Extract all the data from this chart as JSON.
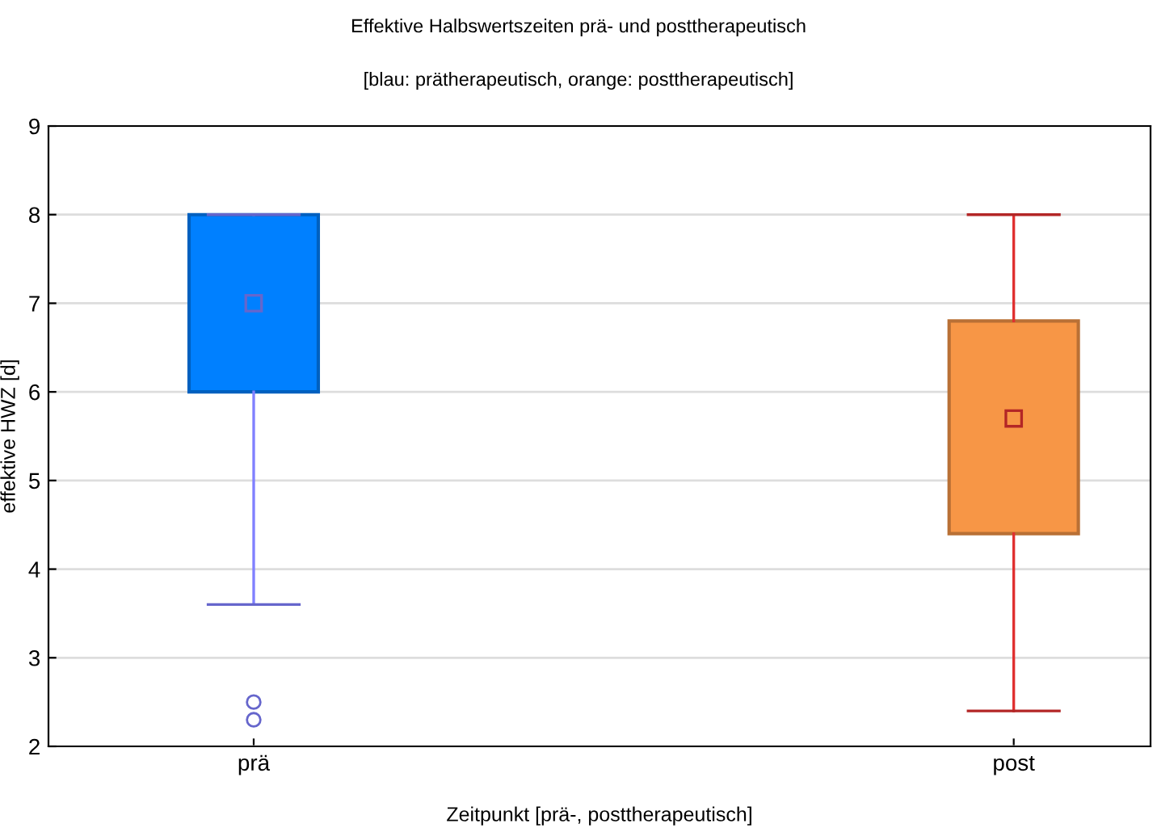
{
  "chart_data": {
    "type": "box",
    "title": "Effektive Halbswertszeiten prä- und posttherapeutisch",
    "subtitle": "[blau: prätherapeutisch, orange: posttherapeutisch]",
    "xlabel": "Zeitpunkt [prä-, posttherapeutisch]",
    "ylabel": "effektive HWZ [d]",
    "categories": [
      "prä",
      "post"
    ],
    "colors": [
      "#0080ff",
      "#f79646"
    ],
    "boxes": [
      {
        "low": 3.6,
        "q1": 6,
        "median": 7,
        "q3": 8,
        "high": 8,
        "outliers": [
          2.5,
          2.3
        ]
      },
      {
        "low": 2.4,
        "q1": 4.4,
        "median": 5.7,
        "q3": 6.8,
        "high": 8
      }
    ],
    "ylim": [
      2,
      9
    ],
    "yticks": [
      2,
      3,
      4,
      5,
      6,
      7,
      8,
      9
    ],
    "grid": "y",
    "legend": false
  }
}
